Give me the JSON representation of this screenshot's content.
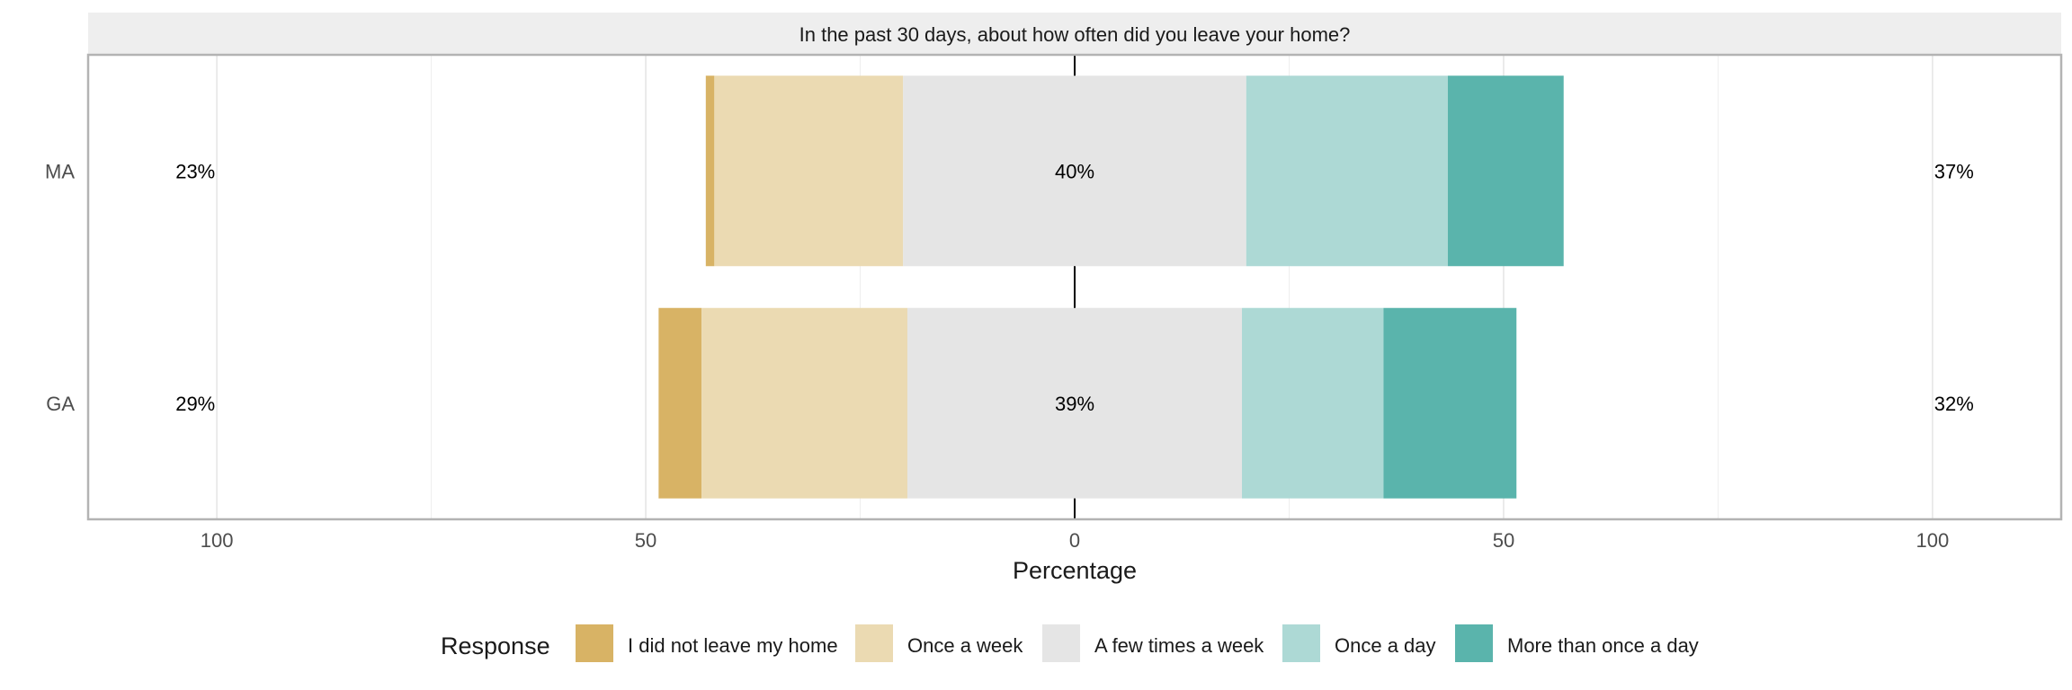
{
  "chart_data": {
    "type": "diverging-stacked-bar",
    "title": "In the past 30 days, about how often did you leave your home?",
    "xlabel": "Percentage",
    "xlim": [
      -115,
      115
    ],
    "x_ticks": [
      -100,
      -50,
      0,
      50,
      100
    ],
    "x_tick_labels": [
      "100",
      "50",
      "0",
      "50",
      "100"
    ],
    "grid": true,
    "legend_title": "Response",
    "legend_position": "bottom",
    "categories": [
      "MA",
      "GA"
    ],
    "series": [
      {
        "name": "I did not leave my home",
        "color": "#D8B365",
        "values": [
          1,
          5
        ]
      },
      {
        "name": "Once a week",
        "color": "#EBDAB2",
        "values": [
          22,
          24
        ]
      },
      {
        "name": "A few times a week",
        "color": "#E5E5E5",
        "values": [
          40,
          39
        ]
      },
      {
        "name": "Once a day",
        "color": "#ADD9D5",
        "values": [
          23.5,
          16.5
        ]
      },
      {
        "name": "More than once a day",
        "color": "#5AB4AC",
        "values": [
          13.5,
          15.5
        ]
      }
    ],
    "left_labels": [
      "23%",
      "29%"
    ],
    "center_labels": [
      "40%",
      "39%"
    ],
    "right_labels": [
      "37%",
      "32%"
    ]
  }
}
